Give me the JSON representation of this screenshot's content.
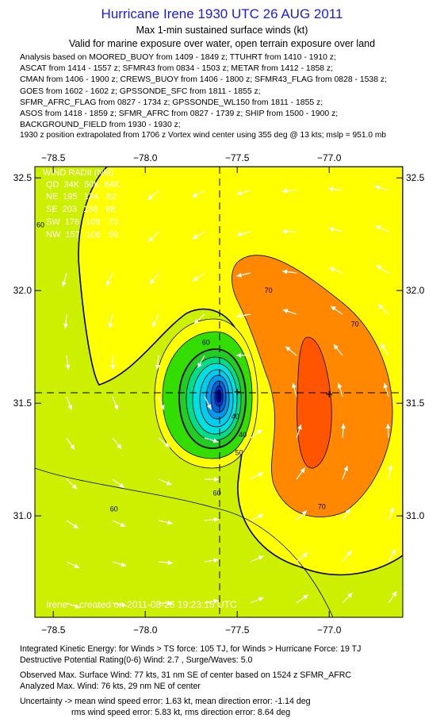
{
  "header": {
    "title": "Hurricane Irene 1930 UTC 26 AUG 2011",
    "subtitle": "Max 1-min sustained surface winds (kt)",
    "validity": "Valid for marine exposure over water, open terrain exposure over land"
  },
  "analysis_lines": [
    "Analysis based on MOORED_BUOY from 1409 - 1849 z; TTUHRT from 1410 - 1910 z;",
    "ASCAT from 1414 - 1557 z; SFMR43 from 0834 - 1503 z; METAR from 1412 - 1858 z;",
    "CMAN from 1406 - 1900 z; CREWS_BUOY from 1406 - 1800 z; SFMR43_FLAG from 0828 - 1538 z;",
    "GOES from 1602 - 1602 z; GPSSONDE_SFC from 1811 - 1855 z;",
    "SFMR_AFRC_FLAG from 0827 - 1734 z; GPSSONDE_WL150 from 1811 - 1855 z;",
    "ASOS from 1418 - 1859 z; SFMR_AFRC from 0827 - 1739 z; SHIP from 1500 - 1900 z;",
    "BACKGROUND_FIELD from 1930 - 1930 z;"
  ],
  "position_note": "1930 z position extrapolated from 1706 z Vortex wind center using 355 deg @ 13 kts; mslp = 951.0 mb",
  "colors": {
    "title": "#1a1aee",
    "field_light": "#ccf000",
    "field_yellow": "#ffff00",
    "field_orange": "#ff8800",
    "field_red": "#ff5500",
    "field_green": "#33dd00",
    "field_cyan": "#00e0e0",
    "field_blue": "#0000cc"
  },
  "chart_data": {
    "type": "heatmap",
    "xlim": [
      -78.6,
      -76.6
    ],
    "ylim": [
      30.55,
      32.55
    ],
    "x_ticks": [
      -78.5,
      -78.0,
      -77.5,
      -77.0
    ],
    "x_tick_labels": [
      "−78.5",
      "−78.0",
      "−77.5",
      "−77.0"
    ],
    "y_ticks": [
      31.0,
      31.5,
      32.0,
      32.5
    ],
    "y_tick_labels": [
      "31.0",
      "31.5",
      "32.0",
      "32.5"
    ],
    "center": [
      -77.5,
      31.55
    ],
    "max_wind_marker": [
      -77.0,
      31.54
    ],
    "contour_labels": [
      {
        "text": "60",
        "x": -78.57,
        "y": 32.28
      },
      {
        "text": "60",
        "x": -77.67,
        "y": 31.76
      },
      {
        "text": "60",
        "x": -77.61,
        "y": 31.09
      },
      {
        "text": "60",
        "x": -78.17,
        "y": 31.02
      },
      {
        "text": "70",
        "x": -77.33,
        "y": 31.99
      },
      {
        "text": "70",
        "x": -76.86,
        "y": 31.84
      },
      {
        "text": "70",
        "x": -77.04,
        "y": 31.03
      },
      {
        "text": "50",
        "x": -77.49,
        "y": 31.27
      },
      {
        "text": "40",
        "x": -77.51,
        "y": 31.43
      },
      {
        "text": "40",
        "x": -77.47,
        "y": 31.35
      }
    ],
    "wind_radii": {
      "title": "WIND RADII (NM)",
      "header": [
        "QD",
        "34K",
        "50K",
        "64K"
      ],
      "rows": [
        [
          "NE",
          "195",
          "134",
          "82"
        ],
        [
          "SE",
          "203",
          "138",
          "88"
        ],
        [
          "SW",
          "176",
          "108",
          "70"
        ],
        [
          "NW",
          "157",
          "106",
          "59"
        ]
      ]
    },
    "credit": "Irene -- created on 2011-08-26 19:23:15 UTC"
  },
  "footer": {
    "ike": "Integrated Kinetic Energy: for Winds > TS force: 105 TJ,  for Winds > Hurricane Force: 19 TJ",
    "destructive": "Destructive Potential Rating(0-6)  Wind: 2.7 , Surge/Waves: 5.0",
    "observed": "Observed Max. Surface Wind: 77 kts, 31 nm SE of center based on 1524 z SFMR_AFRC",
    "analyzed": "Analyzed Max. Wind: 76 kts, 29 nm NE of center",
    "uncert1": "Uncertainty -> mean wind speed error: 1.63 kt,   mean direction error:  -1.14 deg",
    "uncert2": "rms wind speed error: 5.83 kt,   rms direction error: 8.64 deg"
  }
}
